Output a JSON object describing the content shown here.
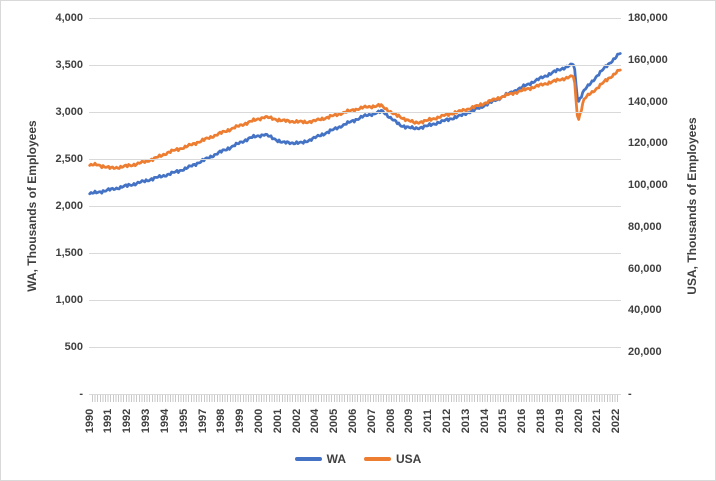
{
  "figure": {
    "background": "#FFFFFF",
    "border_color": "#D9D9D9",
    "gridline_color": "#D9D9D9",
    "text_color": "#404040"
  },
  "chart_data": {
    "type": "line",
    "title": "",
    "grid": "horizontal",
    "legend_position": "bottom",
    "x_axis": {
      "frequency": "monthly",
      "start_year": 1990,
      "end_year": 2022,
      "label_interval_months": 14,
      "labels": [
        "1990",
        "1991",
        "1992",
        "1993",
        "1994",
        "1995",
        "1997",
        "1998",
        "1999",
        "2000",
        "2001",
        "2002",
        "2004",
        "2005",
        "2006",
        "2007",
        "2008",
        "2009",
        "2011",
        "2012",
        "2013",
        "2014",
        "2015",
        "2016",
        "2018",
        "2019",
        "2020",
        "2021",
        "2022"
      ]
    },
    "left_axis": {
      "title": "WA, Thousands of Employees",
      "min": 0,
      "max": 4000,
      "tick_step": 500,
      "ticks": [
        "4,000",
        "3,500",
        "3,000",
        "2,500",
        "2,000",
        "1,500",
        "1,000",
        "500",
        "-"
      ]
    },
    "right_axis": {
      "title": "USA, Thousands of Employees",
      "min": 0,
      "max": 180000,
      "tick_step": 20000,
      "ticks": [
        "180,000",
        "160,000",
        "140,000",
        "120,000",
        "100,000",
        "80,000",
        "60,000",
        "40,000",
        "20,000",
        "-"
      ]
    },
    "series": [
      {
        "name": "WA",
        "axis": "left",
        "color": "#4472C4",
        "anchors": {
          "x_year": [
            1990,
            1991,
            1992,
            1993,
            1994,
            1995,
            1996,
            1997,
            1998,
            1999,
            2000,
            2000.9,
            2002,
            2003.2,
            2004,
            2005,
            2006,
            2007,
            2008.2,
            2009.3,
            2010.2,
            2011,
            2012,
            2013,
            2014,
            2015,
            2016,
            2017,
            2018,
            2019,
            2020.08,
            2020.33,
            2020.7,
            2021,
            2021.5,
            2022,
            2022.92
          ],
          "value": [
            2128,
            2162,
            2200,
            2243,
            2292,
            2340,
            2398,
            2478,
            2562,
            2642,
            2725,
            2762,
            2675,
            2670,
            2725,
            2800,
            2878,
            2952,
            3008,
            2858,
            2822,
            2852,
            2905,
            2958,
            3028,
            3108,
            3192,
            3275,
            3358,
            3438,
            3512,
            3102,
            3228,
            3282,
            3382,
            3472,
            3622
          ]
        }
      },
      {
        "name": "USA",
        "axis": "right",
        "color": "#ED7D31",
        "anchors": {
          "x_year": [
            1990,
            1990.5,
            1991.3,
            1992,
            1993,
            1994,
            1995,
            1996,
            1997,
            1998,
            1999,
            2000,
            2000.9,
            2002,
            2003.4,
            2004,
            2005,
            2006,
            2007,
            2008.1,
            2009,
            2010.2,
            2011,
            2012,
            2013,
            2014,
            2015,
            2016,
            2017,
            2018,
            2019,
            2020.08,
            2020.33,
            2020.7,
            2021,
            2021.5,
            2022,
            2022.92
          ],
          "value": [
            109400,
            109820,
            108150,
            108620,
            110150,
            112500,
            115900,
            118300,
            121250,
            124350,
            127450,
            130350,
            132650,
            130850,
            130100,
            130750,
            132850,
            135150,
            137150,
            138150,
            133600,
            129750,
            130900,
            133250,
            135300,
            137600,
            140600,
            143300,
            145600,
            147850,
            150050,
            152250,
            130300,
            141000,
            143200,
            146300,
            149700,
            155100
          ]
        }
      }
    ]
  },
  "legend": {
    "items": [
      {
        "label": "WA",
        "color": "#4472C4"
      },
      {
        "label": "USA",
        "color": "#ED7D31"
      }
    ]
  }
}
